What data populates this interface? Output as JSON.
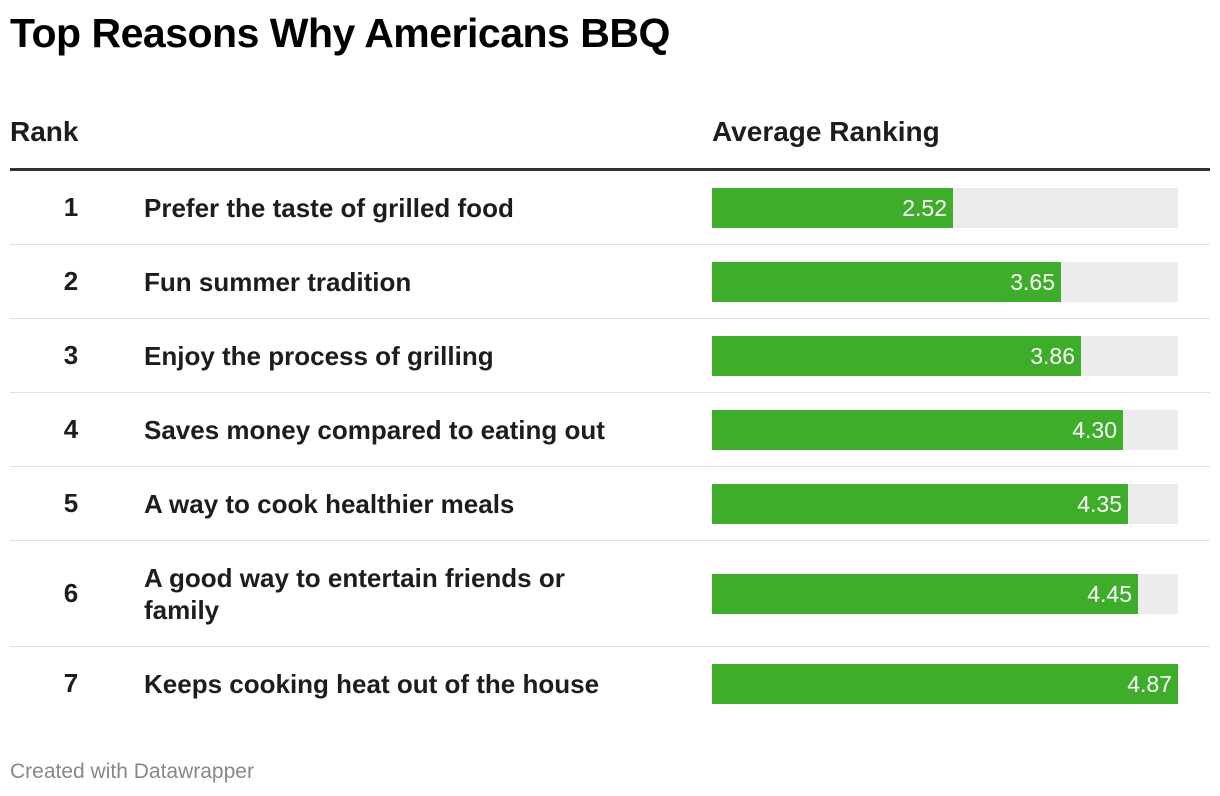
{
  "title": "Top Reasons Why Americans BBQ",
  "headers": {
    "rank": "Rank",
    "average": "Average Ranking"
  },
  "footer": "Created with Datawrapper",
  "colors": {
    "bar": "#3eae2a",
    "track": "#ececec"
  },
  "chart_data": {
    "type": "bar",
    "title": "Top Reasons Why Americans BBQ",
    "xlabel": "",
    "ylabel": "Average Ranking",
    "xlim": [
      0,
      4.87
    ],
    "rows": [
      {
        "rank": "1",
        "label": "Prefer the taste of grilled food",
        "value": 2.52,
        "value_text": "2.52"
      },
      {
        "rank": "2",
        "label": "Fun summer tradition",
        "value": 3.65,
        "value_text": "3.65"
      },
      {
        "rank": "3",
        "label": "Enjoy the process of grilling",
        "value": 3.86,
        "value_text": "3.86"
      },
      {
        "rank": "4",
        "label": "Saves money compared to eating out",
        "value": 4.3,
        "value_text": "4.30"
      },
      {
        "rank": "5",
        "label": "A way to cook healthier meals",
        "value": 4.35,
        "value_text": "4.35"
      },
      {
        "rank": "6",
        "label": "A good way to entertain friends or family",
        "value": 4.45,
        "value_text": "4.45"
      },
      {
        "rank": "7",
        "label": "Keeps cooking heat out of the house",
        "value": 4.87,
        "value_text": "4.87"
      }
    ]
  }
}
